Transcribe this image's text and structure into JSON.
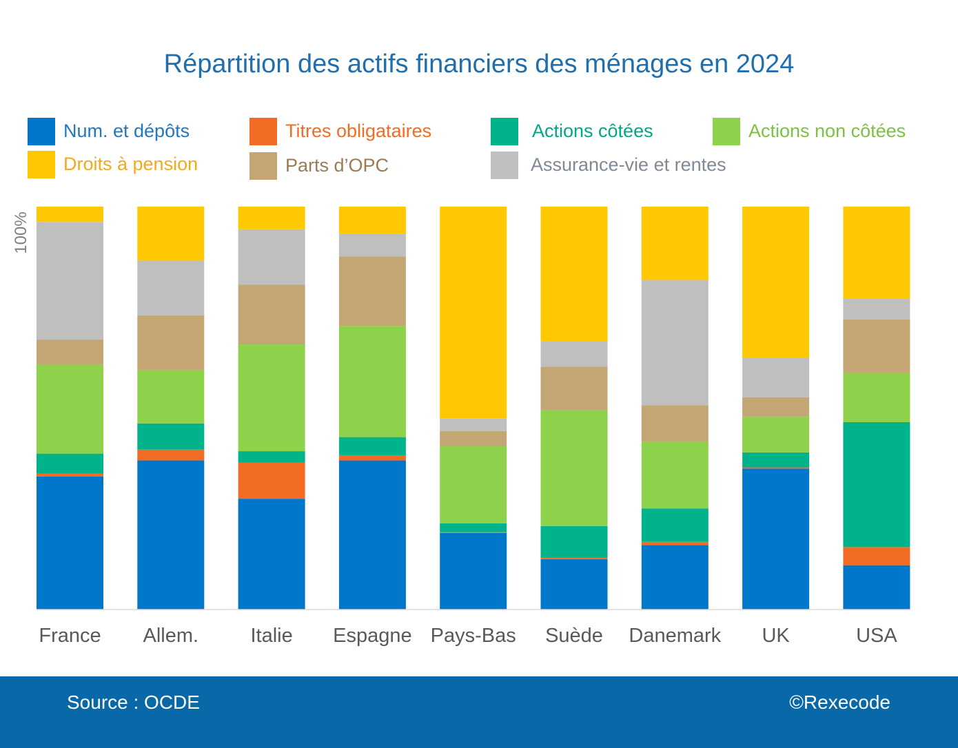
{
  "chart_data": {
    "type": "bar",
    "stacked": true,
    "title": "Répartition des actifs financiers des ménages en 2024",
    "ylabel": "100%",
    "ylim": [
      0,
      100
    ],
    "legend_position": "top",
    "categories": [
      "France",
      "Allem.",
      "Italie",
      "Espagne",
      "Pays-Bas",
      "Suède",
      "Danemark",
      "UK",
      "USA"
    ],
    "series": [
      {
        "name": "Num. et dépôts",
        "color": "#0077c8",
        "values": [
          33,
          37,
          27.5,
          37,
          19,
          12.5,
          16,
          35,
          11
        ]
      },
      {
        "name": "Titres obligataires",
        "color": "#f26c23",
        "values": [
          0.7,
          2.7,
          9,
          1.3,
          0.2,
          0.4,
          0.8,
          0.3,
          4.5
        ]
      },
      {
        "name": "Actions côtées",
        "color": "#00b38a",
        "values": [
          5,
          6.5,
          2.8,
          4.5,
          2.2,
          7.8,
          8.3,
          3.7,
          31
        ]
      },
      {
        "name": "Actions non côtées",
        "color": "#8ed14b",
        "values": [
          22,
          13.3,
          26.5,
          27.5,
          19.1,
          28.8,
          16.6,
          8.9,
          12.2
        ]
      },
      {
        "name": "Parts d'OPC",
        "color": "#c4a574",
        "values": [
          6.3,
          13.5,
          14.8,
          17.3,
          3.8,
          10.8,
          9,
          4.8,
          13.3
        ]
      },
      {
        "name": "Assurance-vie et rentes",
        "color": "#bfbfbf",
        "values": [
          29.2,
          13.6,
          13.8,
          5.7,
          3.1,
          6.3,
          31.1,
          9.7,
          5.1
        ]
      },
      {
        "name": "Droits à pension",
        "color": "#ffc800",
        "values": [
          3.8,
          13.4,
          5.6,
          6.7,
          52.6,
          33.4,
          18.2,
          37.6,
          22.9
        ]
      }
    ]
  },
  "legend": [
    {
      "label": "Num. et dépôts",
      "color": "#0077c8",
      "text_color": "#1f78c1"
    },
    {
      "label": "Titres obligataires",
      "color": "#f26c23",
      "text_color": "#f26c23"
    },
    {
      "label": "Actions côtées",
      "color": "#00b38a",
      "text_color": "#00a884"
    },
    {
      "label": "Actions non côtées",
      "color": "#8ed14b",
      "text_color": "#7cc242"
    },
    {
      "label": "Droits à pension",
      "color": "#ffc800",
      "text_color": "#f5a81c"
    },
    {
      "label": "Parts d’OPC",
      "color": "#c4a574",
      "text_color": "#9a7b58"
    },
    {
      "label": "Assurance-vie et rentes",
      "color": "#bfbfbf",
      "text_color": "#7f8a94"
    }
  ],
  "footer": {
    "source": "Source : OCDE",
    "copyright": "©Rexecode"
  }
}
